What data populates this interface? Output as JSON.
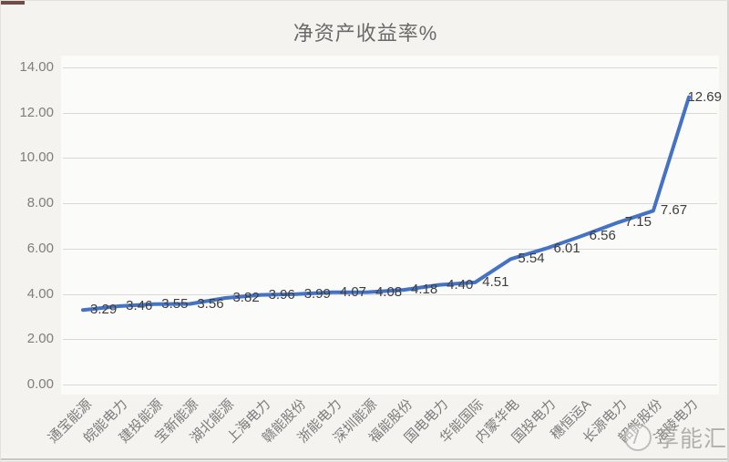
{
  "chart_data": {
    "type": "line",
    "title": "净资产收益率%",
    "categories": [
      "通宝能源",
      "皖能电力",
      "建投能源",
      "宝新能源",
      "湖北能源",
      "上海电力",
      "赣能股份",
      "浙能电力",
      "深圳能源",
      "福能股份",
      "国电电力",
      "华能国际",
      "内蒙华电",
      "国投电力",
      "穗恒运A",
      "长源电力",
      "韶能股份",
      "涪陵电力"
    ],
    "values": [
      3.29,
      3.46,
      3.55,
      3.56,
      3.82,
      3.96,
      3.99,
      4.07,
      4.08,
      4.18,
      4.4,
      4.51,
      5.54,
      6.01,
      6.56,
      7.15,
      7.67,
      12.69
    ],
    "value_labels": [
      "3.29",
      "3.46",
      "3.55",
      "3.56",
      "3.82",
      "3.96",
      "3.99",
      "4.07",
      "4.08",
      "4.18",
      "4.40",
      "4.51",
      "5.54",
      "6.01",
      "6.56",
      "7.15",
      "7.67",
      "12.69"
    ],
    "xlabel": "",
    "ylabel": "",
    "ylim": [
      0,
      14
    ],
    "ytick_labels": [
      "0.00",
      "2.00",
      "4.00",
      "6.00",
      "8.00",
      "10.00",
      "12.00",
      "14.00"
    ],
    "grid": true,
    "legend_position": "none"
  },
  "watermark": {
    "text": "享能汇"
  },
  "colors": {
    "line": "#4472C4",
    "grid": "#d9d8d5",
    "axis_text": "#7e7e7e",
    "data_label_text": "#3d3d3d",
    "title_text": "#696969"
  }
}
